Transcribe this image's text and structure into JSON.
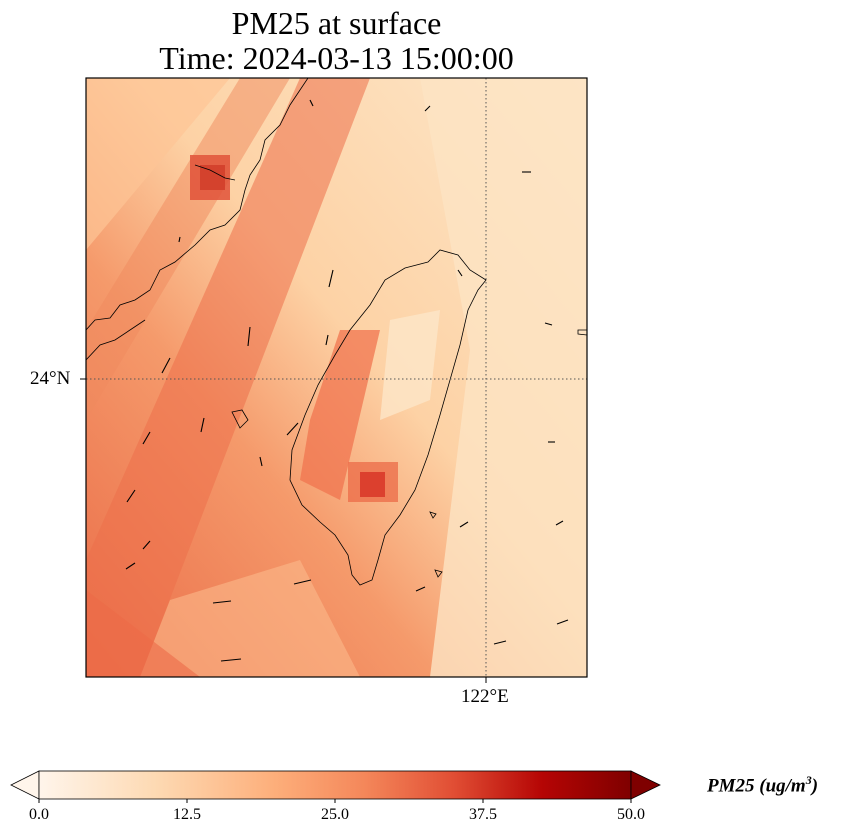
{
  "title": {
    "line1": "PM25 at surface",
    "line2": "Time: 2024-03-13 15:00:00"
  },
  "map": {
    "lat_tick_label": "24°N",
    "lon_tick_label": "122°E",
    "gridlines": "dotted"
  },
  "colorbar": {
    "label_prefix": "PM25 (ug/m",
    "label_exp": "3",
    "label_suffix": ")",
    "ticks": [
      "0.0",
      "12.5",
      "25.0",
      "37.5",
      "50.0"
    ],
    "min": 0,
    "max": 50,
    "colormap": [
      "#fff5eb",
      "#fdd9b2",
      "#fdb07d",
      "#f47d54",
      "#e05535",
      "#b50504",
      "#7f0000"
    ],
    "extend": "both"
  }
}
